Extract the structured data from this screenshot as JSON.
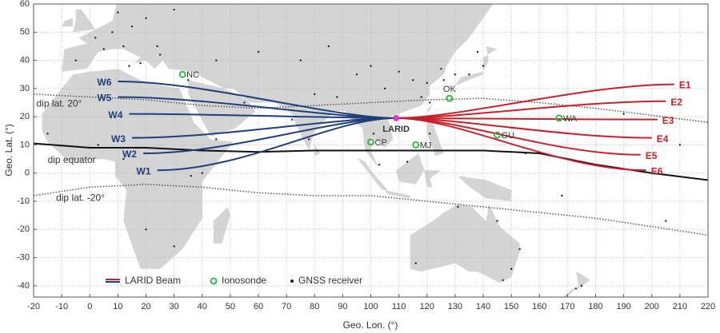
{
  "chart_data": {
    "type": "map",
    "xlabel": "Geo. Lon. (°)",
    "ylabel": "Geo. Lat. (°)",
    "xlim": [
      -20,
      220
    ],
    "ylim": [
      -44,
      60
    ],
    "xticks": [
      -20,
      -10,
      0,
      10,
      20,
      30,
      40,
      50,
      60,
      70,
      80,
      90,
      100,
      110,
      120,
      130,
      140,
      150,
      160,
      170,
      180,
      190,
      200,
      210,
      220
    ],
    "yticks": [
      -40,
      -30,
      -20,
      -10,
      0,
      10,
      20,
      30,
      40,
      50,
      60
    ],
    "grid": true,
    "beams": {
      "legend": "LARID Beam",
      "origin": {
        "name": "LARID",
        "lon": 109,
        "lat": 19.5,
        "color": "#d63fc4"
      },
      "west": {
        "color": "#1f3f7a",
        "items": [
          {
            "name": "W1",
            "lon": 24,
            "lat": 1
          },
          {
            "name": "W2",
            "lon": 19,
            "lat": 7
          },
          {
            "name": "W3",
            "lon": 15,
            "lat": 12.5
          },
          {
            "name": "W4",
            "lon": 14,
            "lat": 21
          },
          {
            "name": "W5",
            "lon": 10,
            "lat": 27
          },
          {
            "name": "W6",
            "lon": 10,
            "lat": 32.5
          }
        ]
      },
      "east": {
        "color": "#c8202a",
        "items": [
          {
            "name": "E1",
            "lon": 208,
            "lat": 31.5
          },
          {
            "name": "E2",
            "lon": 205,
            "lat": 25.5
          },
          {
            "name": "E3",
            "lon": 202,
            "lat": 19
          },
          {
            "name": "E4",
            "lon": 200,
            "lat": 12.5
          },
          {
            "name": "E5",
            "lon": 196,
            "lat": 6.5
          },
          {
            "name": "E6",
            "lon": 198,
            "lat": 1
          }
        ]
      }
    },
    "ionosondes": {
      "legend": "Ionosonde",
      "color": "#3cb44b",
      "items": [
        {
          "name": "NC",
          "lon": 33,
          "lat": 35
        },
        {
          "name": "OK",
          "lon": 128,
          "lat": 26.5
        },
        {
          "name": "WA",
          "lon": 167,
          "lat": 19.5
        },
        {
          "name": "GU",
          "lon": 145,
          "lat": 13.5
        },
        {
          "name": "CP",
          "lon": 100,
          "lat": 11
        },
        {
          "name": "MJ",
          "lon": 116,
          "lat": 10
        }
      ]
    },
    "dip_lines": [
      {
        "name": "dip lat. 20°",
        "label_lon": -19,
        "label_lat": 24.5,
        "style": "dotted",
        "lon": [
          -20,
          0,
          20,
          40,
          60,
          80,
          100,
          120,
          140,
          160,
          180,
          200,
          220
        ],
        "lat": [
          28,
          27,
          26,
          24,
          23,
          24,
          25,
          26,
          26.5,
          25,
          23,
          20.5,
          18
        ]
      },
      {
        "name": "dip equator",
        "label_lon": -15,
        "label_lat": 4.5,
        "style": "solid",
        "lon": [
          -20,
          0,
          20,
          40,
          60,
          80,
          100,
          120,
          140,
          160,
          180,
          200,
          220
        ],
        "lat": [
          10.5,
          9,
          9,
          8,
          7.5,
          8,
          8,
          8,
          8,
          7,
          3,
          0,
          -2.5
        ]
      },
      {
        "name": "dip lat. -20°",
        "label_lon": -12,
        "label_lat": -9,
        "style": "dotted",
        "lon": [
          -20,
          0,
          20,
          40,
          60,
          80,
          100,
          120,
          140,
          160,
          180,
          200,
          220
        ],
        "lat": [
          -8,
          -5,
          -4,
          -5,
          -7,
          -8,
          -8,
          -10,
          -12,
          -14,
          -16,
          -19,
          -22
        ]
      }
    ],
    "gnss": {
      "legend": "GNSS receiver",
      "color": "#222",
      "lon": [
        -5,
        2,
        8,
        12,
        15,
        20,
        25,
        30,
        10,
        5,
        14,
        18,
        24,
        35,
        45,
        60,
        75,
        85,
        95,
        100,
        105,
        110,
        115,
        118,
        120,
        125,
        130,
        135,
        140,
        138,
        88,
        78,
        72,
        80,
        101,
        103,
        113,
        121,
        121,
        126,
        150,
        147,
        116,
        131,
        145,
        153,
        175,
        45,
        30,
        20,
        12,
        36,
        55,
        155,
        190,
        210,
        205,
        168,
        173,
        40,
        3,
        -15
      ],
      "lat": [
        40,
        48,
        50,
        45,
        52,
        55,
        42,
        58,
        57,
        44,
        38,
        39,
        45,
        33,
        40,
        43,
        40,
        45,
        35,
        38,
        30,
        36,
        33,
        27,
        32,
        37,
        35,
        35,
        38,
        43,
        27,
        12,
        19,
        28,
        14,
        3,
        4,
        14,
        25,
        33,
        -34,
        -38,
        -32,
        -12,
        -17,
        -27,
        -40,
        12,
        -26,
        -20,
        5,
        -1,
        25,
        7,
        21,
        10,
        -17,
        -8,
        -41,
        0,
        10,
        14
      ]
    }
  }
}
